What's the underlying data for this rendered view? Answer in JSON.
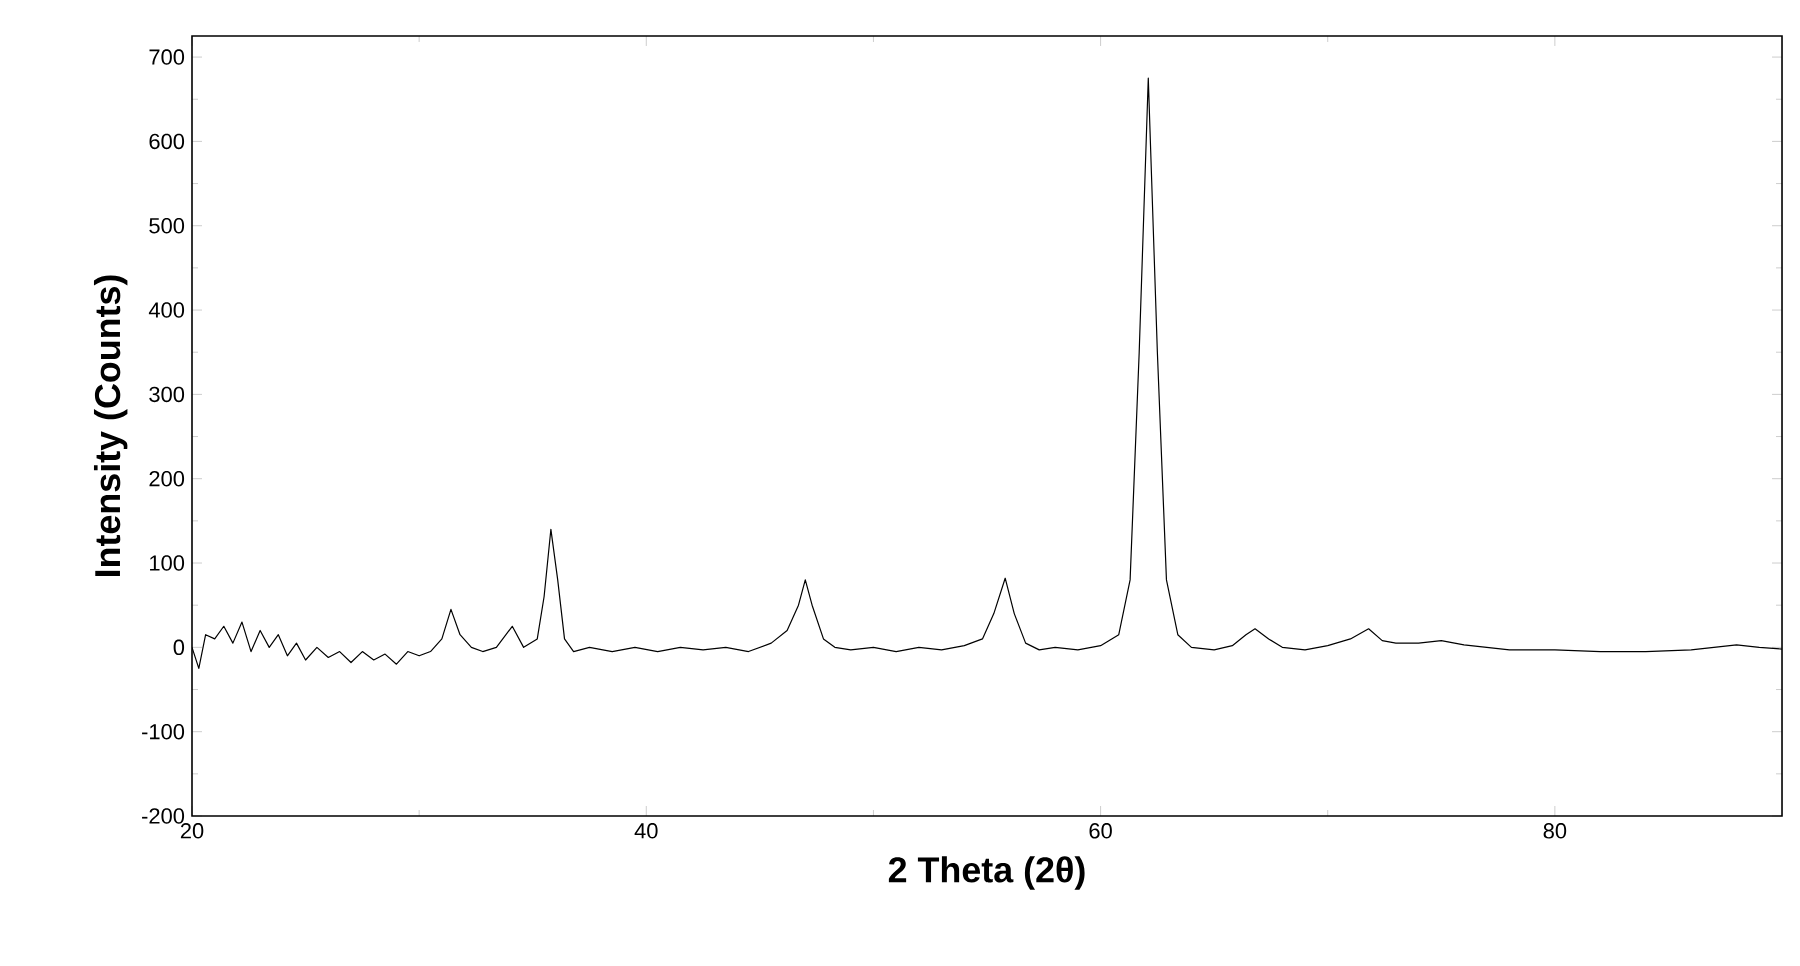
{
  "chart_data": {
    "type": "line",
    "xlabel": "2 Theta (2θ)",
    "ylabel": "Intensity (Counts)",
    "xlim": [
      20,
      90
    ],
    "ylim": [
      -200,
      725
    ],
    "xticks": [
      20,
      40,
      60,
      80
    ],
    "yticks": [
      -200,
      -100,
      0,
      100,
      200,
      300,
      400,
      500,
      600,
      700
    ],
    "grid": false,
    "marker": "none",
    "line_style": "solid",
    "series": [
      {
        "color": "#000000",
        "x": [
          20,
          20.3,
          20.6,
          21,
          21.4,
          21.8,
          22.2,
          22.6,
          23,
          23.4,
          23.8,
          24.2,
          24.6,
          25,
          25.5,
          26,
          26.5,
          27,
          27.5,
          28,
          28.5,
          29,
          29.5,
          30,
          30.5,
          31,
          31.4,
          31.8,
          32.3,
          32.8,
          33.4,
          34.1,
          34.6,
          35.2,
          35.5,
          35.8,
          36.1,
          36.4,
          36.8,
          37.5,
          38.5,
          39.5,
          40.5,
          41.5,
          42.5,
          43.5,
          44.5,
          45.5,
          46.2,
          46.7,
          47.0,
          47.3,
          47.8,
          48.3,
          49,
          50,
          51,
          52,
          53,
          54,
          54.8,
          55.3,
          55.8,
          56.2,
          56.7,
          57.3,
          58,
          59,
          60,
          60.8,
          61.3,
          61.7,
          62.1,
          62.5,
          62.9,
          63.4,
          64,
          65,
          65.8,
          66.4,
          66.8,
          67.4,
          68,
          69,
          70,
          71,
          71.8,
          72.4,
          73,
          74,
          75,
          76,
          77,
          78,
          80,
          82,
          84,
          86,
          88,
          89,
          90
        ],
        "values": [
          0,
          -25,
          15,
          10,
          25,
          5,
          30,
          -5,
          20,
          0,
          15,
          -10,
          5,
          -15,
          0,
          -12,
          -5,
          -18,
          -5,
          -15,
          -8,
          -20,
          -5,
          -10,
          -5,
          10,
          45,
          15,
          0,
          -5,
          0,
          25,
          0,
          10,
          60,
          140,
          80,
          10,
          -5,
          0,
          -5,
          0,
          -5,
          0,
          -3,
          0,
          -5,
          5,
          20,
          50,
          80,
          50,
          10,
          0,
          -3,
          0,
          -5,
          0,
          -3,
          2,
          10,
          40,
          82,
          40,
          5,
          -3,
          0,
          -3,
          2,
          15,
          80,
          350,
          675,
          350,
          80,
          15,
          0,
          -3,
          2,
          15,
          22,
          10,
          0,
          -3,
          2,
          10,
          22,
          8,
          5,
          5,
          8,
          3,
          0,
          -3,
          -3,
          -5,
          -5,
          -3,
          3,
          0,
          -2
        ]
      }
    ]
  }
}
